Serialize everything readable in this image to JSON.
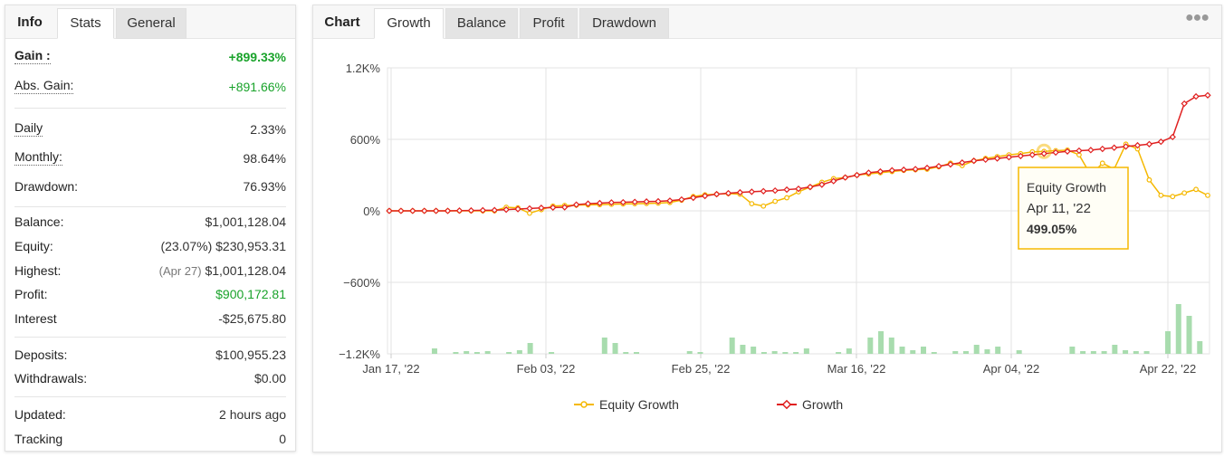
{
  "left": {
    "tabs": [
      {
        "label": "Info",
        "header": true
      },
      {
        "label": "Stats",
        "active": true
      },
      {
        "label": "General"
      }
    ],
    "gain": {
      "label": "Gain :",
      "value": "+899.33%"
    },
    "abs_gain": {
      "label": "Abs. Gain:",
      "value": "+891.66%"
    },
    "daily": {
      "label": "Daily",
      "value": "2.33%"
    },
    "monthly": {
      "label": "Monthly:",
      "value": "98.64%"
    },
    "drawdown": {
      "label": "Drawdown:",
      "value": "76.93%"
    },
    "balance": {
      "label": "Balance:",
      "value": "$1,001,128.04"
    },
    "equity": {
      "label": "Equity:",
      "prefix": "(23.07%)",
      "value": "$230,953.31"
    },
    "highest": {
      "label": "Highest:",
      "prefix": "(Apr 27)",
      "value": "$1,001,128.04"
    },
    "profit": {
      "label": "Profit:",
      "value": "$900,172.81"
    },
    "interest": {
      "label": "Interest",
      "value": "-$25,675.80"
    },
    "deposits": {
      "label": "Deposits:",
      "value": "$100,955.23"
    },
    "withdrawals": {
      "label": "Withdrawals:",
      "value": "$0.00"
    },
    "updated": {
      "label": "Updated:",
      "value": "2 hours ago"
    },
    "tracking": {
      "label": "Tracking",
      "value": "0"
    }
  },
  "right": {
    "tabs": [
      {
        "label": "Chart",
        "header": true
      },
      {
        "label": "Growth",
        "active": true
      },
      {
        "label": "Balance"
      },
      {
        "label": "Profit"
      },
      {
        "label": "Drawdown"
      }
    ],
    "menu_icon": "ellipsis-icon",
    "tooltip": {
      "series": "Equity Growth",
      "date": "Apr 11, '22",
      "value": "499.05%"
    }
  },
  "colors": {
    "equity": "#f5b800",
    "growth": "#e02020",
    "bars": "#a8dcae",
    "positive": "#1aa32b"
  },
  "chart_data": {
    "type": "line",
    "y_ticks": [
      "1.2K%",
      "600%",
      "0%",
      "−600%",
      "−1.2K%"
    ],
    "ylim": [
      -1200,
      1200
    ],
    "x_ticks": [
      "Jan 17, '22",
      "Feb 03, '22",
      "Feb 25, '22",
      "Mar 16, '22",
      "Apr 04, '22",
      "Apr 22, '22"
    ],
    "legend": [
      "Equity Growth",
      "Growth"
    ],
    "series": [
      {
        "name": "Growth",
        "values": [
          0,
          0,
          0,
          0,
          0,
          0,
          2,
          3,
          5,
          6,
          10,
          15,
          20,
          25,
          28,
          30,
          52,
          60,
          65,
          70,
          72,
          75,
          78,
          80,
          85,
          95,
          110,
          125,
          140,
          148,
          155,
          160,
          165,
          170,
          178,
          185,
          200,
          220,
          250,
          280,
          300,
          320,
          330,
          340,
          345,
          350,
          360,
          375,
          390,
          405,
          420,
          430,
          440,
          450,
          460,
          470,
          480,
          490,
          499,
          505,
          510,
          520,
          530,
          540,
          550,
          560,
          580,
          620,
          900,
          960,
          970
        ]
      },
      {
        "name": "Equity Growth",
        "values": [
          0,
          0,
          0,
          0,
          0,
          0,
          0,
          0,
          0,
          0,
          30,
          25,
          -20,
          10,
          40,
          45,
          48,
          50,
          52,
          55,
          58,
          60,
          62,
          65,
          70,
          90,
          120,
          135,
          140,
          145,
          140,
          60,
          40,
          80,
          110,
          160,
          200,
          240,
          270,
          280,
          300,
          310,
          320,
          330,
          340,
          345,
          350,
          370,
          400,
          380,
          420,
          440,
          455,
          470,
          480,
          495,
          499,
          505,
          510,
          470,
          300,
          400,
          350,
          560,
          520,
          260,
          130,
          120,
          150,
          180,
          130
        ]
      }
    ],
    "bars": [
      0,
      0,
      0,
      0,
      6,
      0,
      2,
      3,
      2,
      3,
      0,
      2,
      4,
      12,
      0,
      2,
      0,
      0,
      0,
      0,
      18,
      12,
      2,
      2,
      0,
      0,
      0,
      0,
      3,
      2,
      0,
      0,
      18,
      10,
      8,
      2,
      3,
      2,
      2,
      6,
      0,
      0,
      2,
      6,
      0,
      18,
      25,
      18,
      8,
      4,
      8,
      2,
      0,
      3,
      3,
      10,
      5,
      8,
      0,
      4,
      0,
      0,
      0,
      0,
      8,
      3,
      3,
      3,
      10,
      4,
      3,
      3,
      0,
      25,
      55,
      42,
      14
    ]
  }
}
